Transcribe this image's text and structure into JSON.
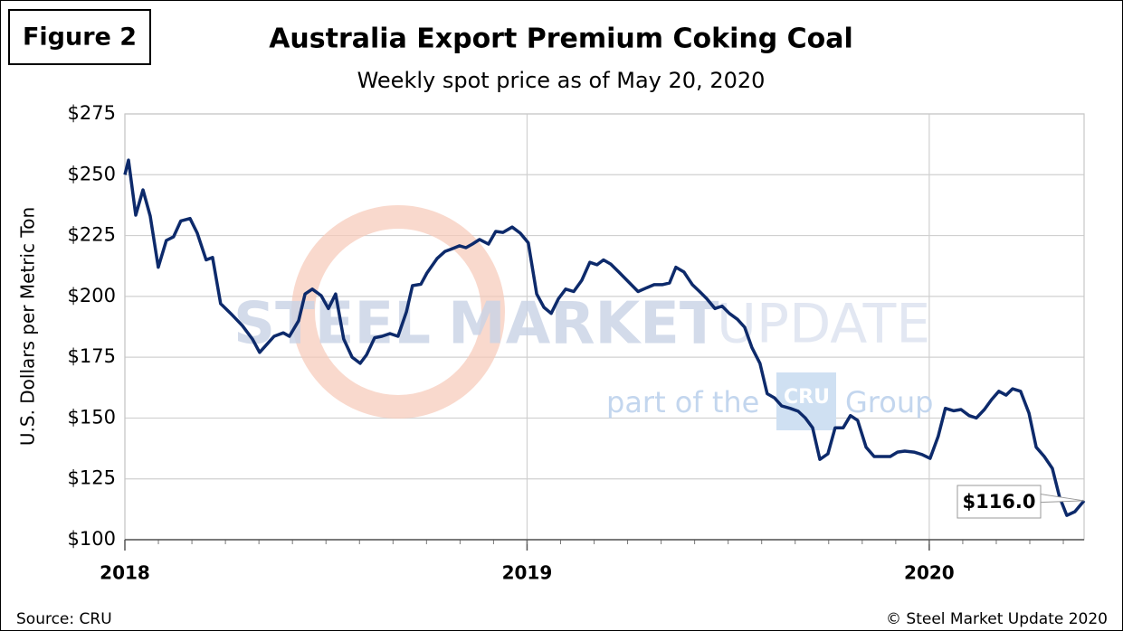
{
  "chart_data": {
    "type": "line",
    "figure_label": "Figure 2",
    "title": "Australia Export Premium Coking Coal",
    "subtitle": "Weekly spot price as of May 20, 2020",
    "y_label": "U.S. Dollars per Metric Ton",
    "source": "Source: CRU",
    "credit": "© Steel Market Update 2020",
    "watermark": [
      "STEEL",
      "MARKET",
      "UPDATE",
      "part of the",
      "CRU",
      "Group"
    ],
    "annotation": "$116.0",
    "xlim": [
      2018,
      2020.385
    ],
    "xticks": [
      2018,
      2019,
      2020
    ],
    "ylim": [
      100,
      275
    ],
    "yticks": [
      {
        "value": 100,
        "label": "$100"
      },
      {
        "value": 125,
        "label": "$125"
      },
      {
        "value": 150,
        "label": "$150"
      },
      {
        "value": 175,
        "label": "$175"
      },
      {
        "value": 200,
        "label": "$200"
      },
      {
        "value": 225,
        "label": "$225"
      },
      {
        "value": 250,
        "label": "$250"
      },
      {
        "value": 275,
        "label": "$275"
      }
    ],
    "grid": true,
    "x": [
      2018.0,
      2018.009,
      2018.027,
      2018.045,
      2018.063,
      2018.083,
      2018.103,
      2018.121,
      2018.139,
      2018.162,
      2018.18,
      2018.202,
      2018.218,
      2018.238,
      2018.263,
      2018.292,
      2018.317,
      2018.335,
      2018.371,
      2018.394,
      2018.409,
      2018.432,
      2018.448,
      2018.466,
      2018.488,
      2018.506,
      2018.524,
      2018.544,
      2018.565,
      2018.585,
      2018.601,
      2018.621,
      2018.639,
      2018.659,
      2018.679,
      2018.7,
      2018.715,
      2018.736,
      2018.751,
      2018.776,
      2018.796,
      2018.814,
      2018.832,
      2018.848,
      2018.864,
      2018.882,
      2018.904,
      2018.922,
      2018.94,
      2018.963,
      2018.983,
      2019.003,
      2019.024,
      2019.042,
      2019.06,
      2019.078,
      2019.096,
      2019.116,
      2019.136,
      2019.156,
      2019.174,
      2019.19,
      2019.208,
      2019.228,
      2019.246,
      2019.276,
      2019.298,
      2019.316,
      2019.336,
      2019.354,
      2019.37,
      2019.39,
      2019.411,
      2019.429,
      2019.447,
      2019.467,
      2019.485,
      2019.503,
      2019.523,
      2019.541,
      2019.559,
      2019.579,
      2019.597,
      2019.615,
      2019.633,
      2019.654,
      2019.674,
      2019.692,
      2019.71,
      2019.728,
      2019.748,
      2019.766,
      2019.786,
      2019.804,
      2019.822,
      2019.843,
      2019.863,
      2019.883,
      2019.903,
      2019.921,
      2019.939,
      2019.962,
      2019.982,
      2020.002,
      2020.022,
      2020.04,
      2020.061,
      2020.079,
      2020.099,
      2020.117,
      2020.137,
      2020.155,
      2020.173,
      2020.191,
      2020.207,
      2020.227,
      2020.248,
      2020.266,
      2020.286,
      2020.306,
      2020.324,
      2020.342,
      2020.362,
      2020.385
    ],
    "series": [
      {
        "name": "Premium Coking Coal",
        "color": "#0d2a6b",
        "values": [
          250,
          256,
          233.4,
          243.8,
          233,
          212,
          223,
          224.5,
          231,
          232,
          226,
          215,
          216,
          197,
          193,
          188,
          182.5,
          177,
          183.6,
          185,
          183.6,
          190,
          201,
          203,
          200.3,
          195,
          201,
          182.5,
          175,
          172.5,
          176,
          183,
          183.6,
          184.7,
          183.6,
          193.6,
          204.4,
          205,
          209.6,
          215.5,
          218.5,
          219.6,
          220.8,
          220,
          221.5,
          223.4,
          221.5,
          226.7,
          226.3,
          228.5,
          226,
          222,
          201,
          195.5,
          193,
          199,
          203,
          202,
          206.6,
          214,
          213,
          215,
          213.3,
          210,
          207,
          202,
          203.6,
          204.8,
          204.8,
          205.5,
          212,
          210,
          204.8,
          202,
          199,
          195,
          196,
          193,
          190.6,
          187.3,
          179,
          172.5,
          160,
          158.3,
          155,
          154,
          152.8,
          150,
          146,
          133,
          135.3,
          146,
          146,
          151,
          149,
          138,
          134.2,
          134.2,
          134.2,
          136,
          136.4,
          136,
          135,
          133.4,
          142.4,
          154,
          153,
          153.5,
          151,
          150,
          153.5,
          157.6,
          161,
          159.4,
          162,
          161,
          152,
          138,
          134.2,
          129.3,
          117.5,
          110,
          111.5,
          116
        ]
      }
    ]
  }
}
